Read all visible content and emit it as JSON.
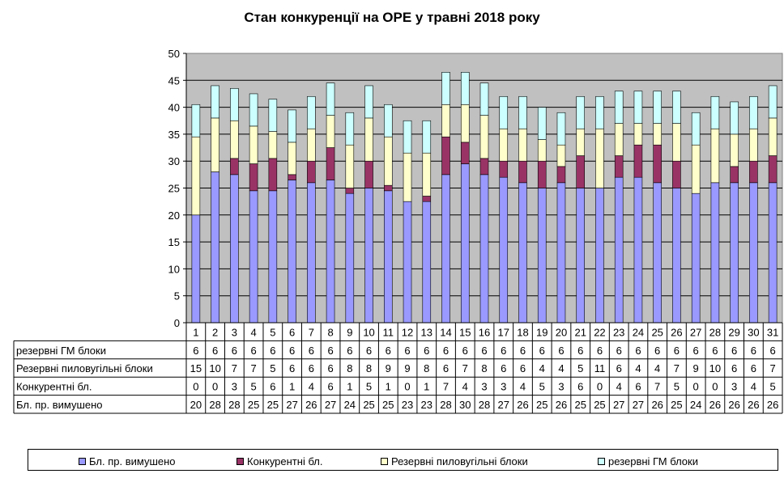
{
  "chart_data": {
    "type": "bar",
    "stacked": true,
    "title": "Стан конкуренції на ОРЕ  у травні 2018 року",
    "xlabel": "",
    "ylabel": "",
    "ylim": [
      0,
      50
    ],
    "yticks": [
      0,
      5,
      10,
      15,
      20,
      25,
      30,
      35,
      40,
      45,
      50
    ],
    "grid": true,
    "legend_position": "bottom",
    "categories": [
      "1",
      "2",
      "3",
      "4",
      "5",
      "6",
      "7",
      "8",
      "9",
      "10",
      "11",
      "12",
      "13",
      "14",
      "15",
      "16",
      "17",
      "18",
      "19",
      "20",
      "21",
      "22",
      "23",
      "24",
      "25",
      "26",
      "27",
      "28",
      "29",
      "30",
      "31"
    ],
    "series": [
      {
        "name": "Бл. пр. вимушено",
        "color": "#9999ff",
        "values": [
          20,
          28,
          27.5,
          24.5,
          24.5,
          26.5,
          26,
          26.5,
          24,
          25,
          24.5,
          22.5,
          22.5,
          27.5,
          29.5,
          27.5,
          27,
          26,
          25,
          26,
          25,
          25,
          27,
          27,
          26,
          25,
          24,
          26,
          26,
          26,
          26
        ],
        "labels": [
          "20",
          "28",
          "28",
          "25",
          "25",
          "27",
          "26",
          "27",
          "24",
          "25",
          "25",
          "23",
          "23",
          "28",
          "30",
          "28",
          "27",
          "26",
          "25",
          "26",
          "25",
          "25",
          "27",
          "27",
          "26",
          "25",
          "24",
          "26",
          "26",
          "26",
          "26"
        ]
      },
      {
        "name": "Конкурентні  бл.",
        "color": "#993366",
        "values": [
          0,
          0,
          3,
          5,
          6,
          1,
          4,
          6,
          1,
          5,
          1,
          0,
          1,
          7,
          4,
          3,
          3,
          4,
          5,
          3,
          6,
          0,
          4,
          6,
          7,
          5,
          0,
          0,
          3,
          4,
          5
        ],
        "labels": [
          "0",
          "0",
          "3",
          "5",
          "6",
          "1",
          "4",
          "6",
          "1",
          "5",
          "1",
          "0",
          "1",
          "7",
          "4",
          "3",
          "3",
          "4",
          "5",
          "3",
          "6",
          "0",
          "4",
          "6",
          "7",
          "5",
          "0",
          "0",
          "3",
          "4",
          "5"
        ]
      },
      {
        "name": "Резервні пиловугільні  блоки",
        "color": "#ffffcc",
        "values": [
          14.5,
          10,
          7,
          7,
          5,
          6,
          6,
          6,
          8,
          8,
          9,
          9,
          8,
          6,
          7,
          8,
          6,
          6,
          4,
          4,
          5,
          11,
          6,
          4,
          4,
          7,
          9,
          10,
          6,
          6,
          7
        ],
        "labels": [
          "15",
          "10",
          "7",
          "7",
          "5",
          "6",
          "6",
          "6",
          "8",
          "8",
          "9",
          "9",
          "8",
          "6",
          "7",
          "8",
          "6",
          "6",
          "4",
          "4",
          "5",
          "11",
          "6",
          "4",
          "4",
          "7",
          "9",
          "10",
          "6",
          "6",
          "7"
        ]
      },
      {
        "name": "резервні ГМ блоки",
        "color": "#ccffff",
        "values": [
          6,
          6,
          6,
          6,
          6,
          6,
          6,
          6,
          6,
          6,
          6,
          6,
          6,
          6,
          6,
          6,
          6,
          6,
          6,
          6,
          6,
          6,
          6,
          6,
          6,
          6,
          6,
          6,
          6,
          6,
          6
        ],
        "labels": [
          "6",
          "6",
          "6",
          "6",
          "6",
          "6",
          "6",
          "6",
          "6",
          "6",
          "6",
          "6",
          "6",
          "6",
          "6",
          "6",
          "6",
          "6",
          "6",
          "6",
          "6",
          "6",
          "6",
          "6",
          "6",
          "6",
          "6",
          "6",
          "6",
          "6",
          "6"
        ]
      }
    ],
    "table_row_order": [
      "резервні ГМ блоки",
      "Резервні пиловугільні  блоки",
      "Конкурентні  бл.",
      "Бл. пр. вимушено"
    ],
    "table_row_labels": [
      "резервні ГМ блоки",
      "Резервні пиловугільні  блоки",
      "Конкурентні  бл.",
      "Бл. пр. вимушено"
    ],
    "legend_order": [
      "Бл. пр. вимушено",
      "Конкурентні  бл.",
      "Резервні пиловугільні  блоки",
      "резервні ГМ блоки"
    ],
    "plot_background": "#c0c0c0"
  }
}
